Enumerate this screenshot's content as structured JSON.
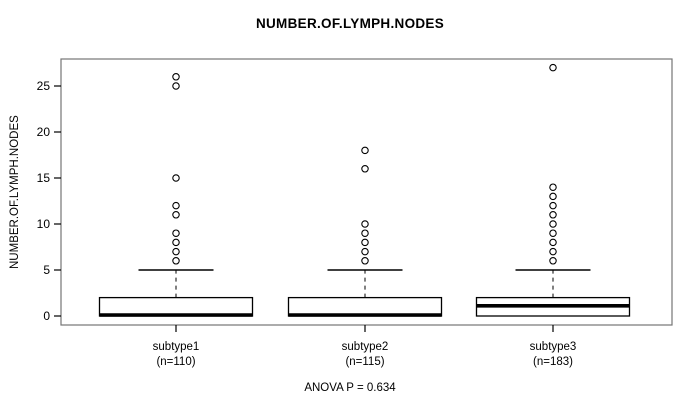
{
  "chart_data": {
    "type": "boxplot",
    "title": "NUMBER.OF.LYMPH.NODES",
    "ylabel": "NUMBER.OF.LYMPH.NODES",
    "yticks": [
      0,
      5,
      10,
      15,
      20,
      25
    ],
    "ylim": [
      -1,
      28
    ],
    "grid": false,
    "footer": "ANOVA P = 0.634",
    "groups": [
      {
        "label": "subtype1",
        "sublabel": "(n=110)",
        "q1": 0,
        "median": 0,
        "q3": 2,
        "whisker_low": 0,
        "whisker_high": 5,
        "outliers": [
          6,
          7,
          8,
          9,
          11,
          12,
          15,
          25,
          26
        ]
      },
      {
        "label": "subtype2",
        "sublabel": "(n=115)",
        "q1": 0,
        "median": 0,
        "q3": 2,
        "whisker_low": 0,
        "whisker_high": 5,
        "outliers": [
          6,
          7,
          8,
          9,
          10,
          16,
          18
        ]
      },
      {
        "label": "subtype3",
        "sublabel": "(n=183)",
        "q1": 0,
        "median": 1,
        "q3": 2,
        "whisker_low": 0,
        "whisker_high": 5,
        "outliers": [
          6,
          7,
          8,
          9,
          10,
          11,
          12,
          13,
          14,
          27
        ]
      }
    ],
    "colors": {
      "box_fill": "#ffffff",
      "line": "#000000",
      "frame": "#757575"
    }
  }
}
